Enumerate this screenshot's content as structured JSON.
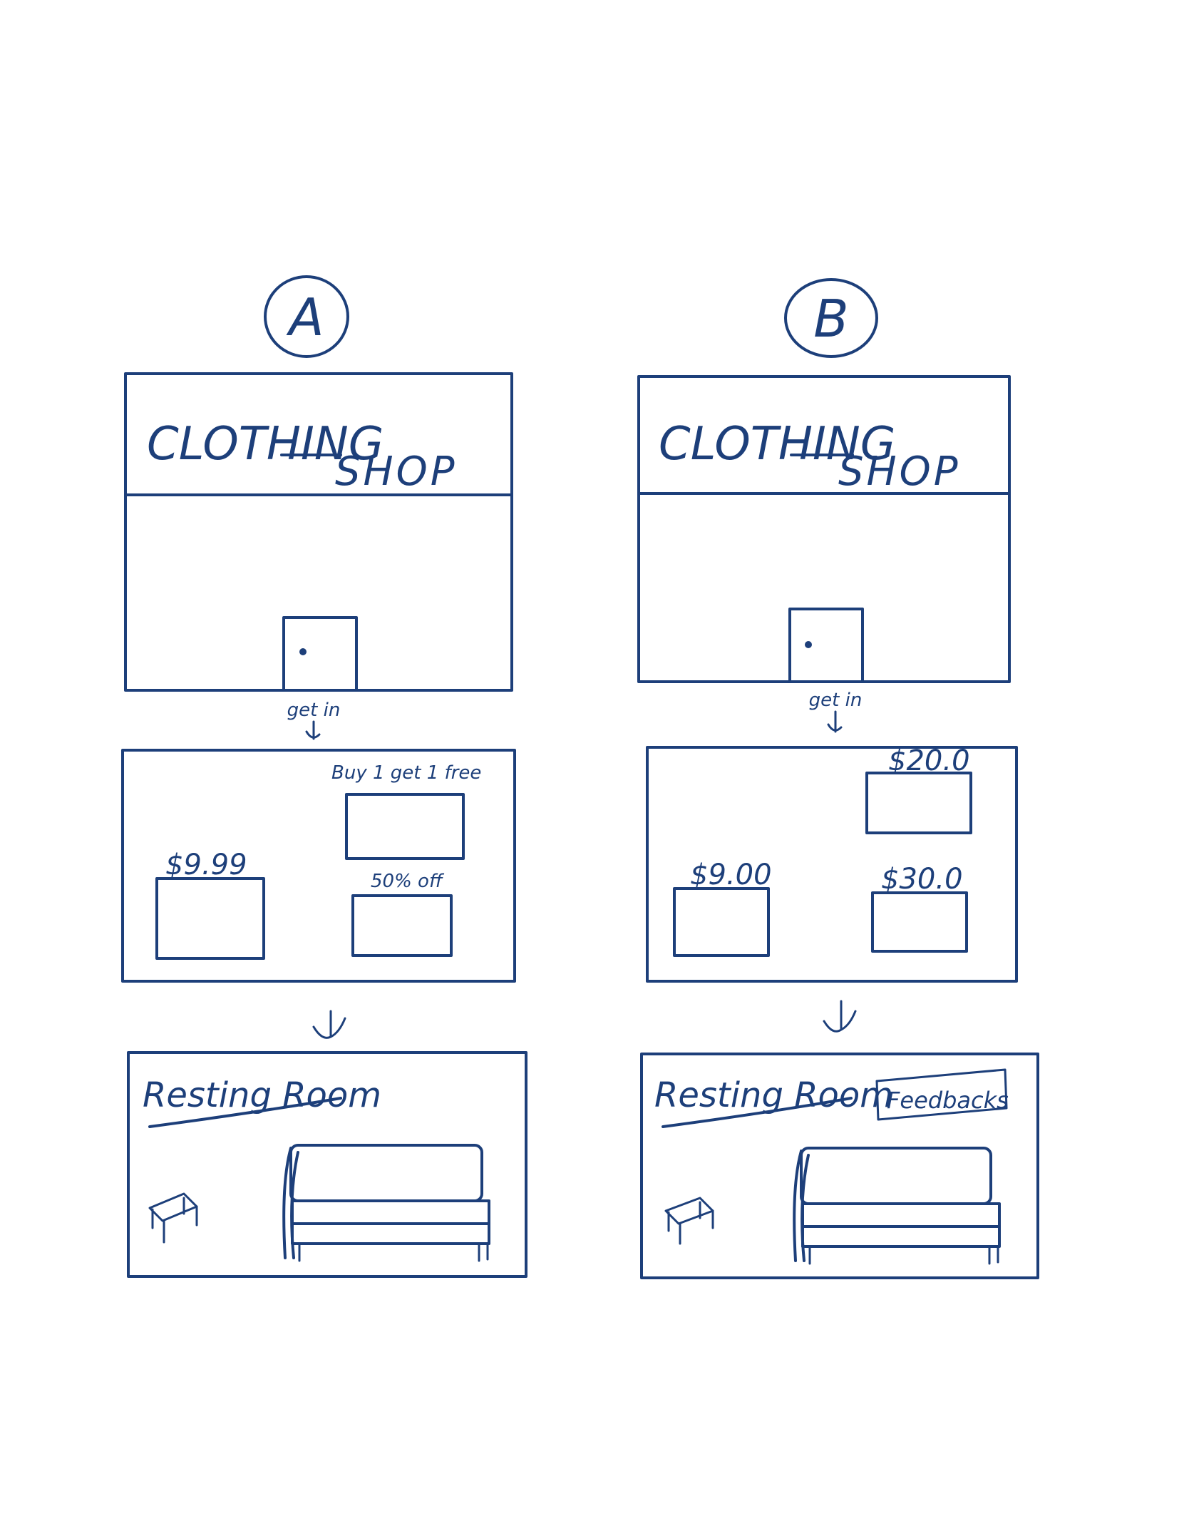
{
  "panels": [
    {
      "label": "A",
      "shop": {
        "title": "CLOTHING",
        "subtitle": "SHOP"
      },
      "enter_label": "get in",
      "store": {
        "tags": [
          "Buy 1 get 1 free",
          "$9.99",
          "50% off"
        ]
      },
      "room": {
        "title": "Resting Room",
        "feedback": ""
      }
    },
    {
      "label": "B",
      "shop": {
        "title": "CLOTHING",
        "subtitle": "SHOP"
      },
      "enter_label": "get in",
      "store": {
        "tags": [
          "$20.0",
          "$9.00",
          "$30.0"
        ]
      },
      "room": {
        "title": "Resting Room",
        "feedback": "Feedbacks"
      }
    }
  ]
}
